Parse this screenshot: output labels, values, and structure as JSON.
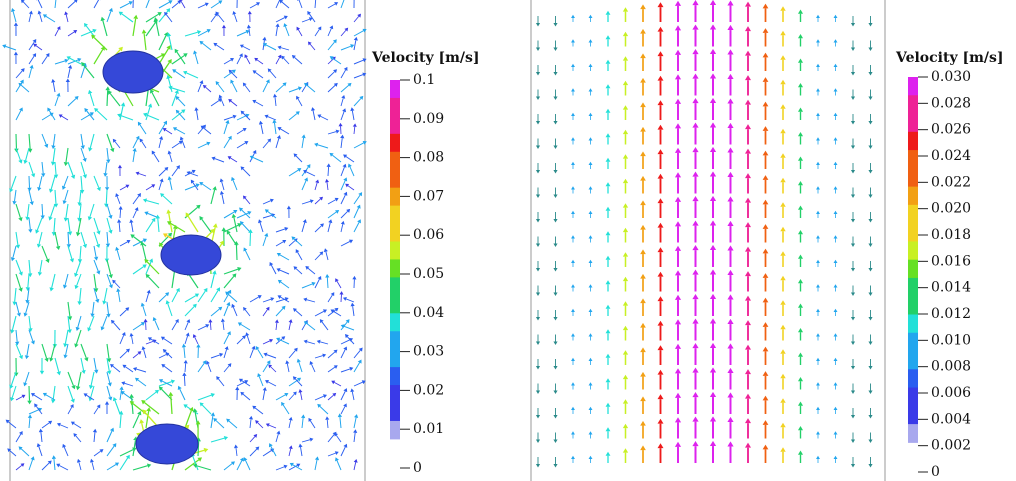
{
  "panels": [
    {
      "colorbar": {
        "title": "Velocity [m/s]",
        "ticks": [
          0.1,
          0.09,
          0.08,
          0.07,
          0.06,
          0.05,
          0.04,
          0.03,
          0.02,
          0.01,
          0
        ]
      }
    },
    {
      "colorbar": {
        "title": "Velocity [m/s]",
        "ticks": [
          {
            "value": 0.03,
            "label": "0.030"
          },
          0.028,
          0.026,
          0.024,
          0.022,
          {
            "value": 0.02,
            "label": "0.020"
          },
          0.018,
          0.016,
          0.014,
          0.012,
          {
            "value": 0.01,
            "label": "0.010"
          },
          0.008,
          0.006,
          0.004,
          0.002,
          0
        ]
      }
    }
  ]
}
